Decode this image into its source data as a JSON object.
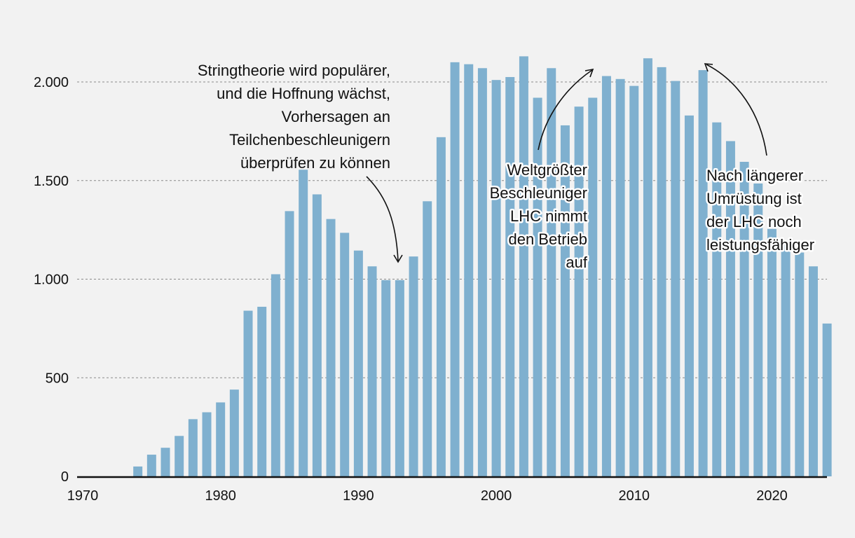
{
  "chart_data": {
    "type": "bar",
    "title": "",
    "xlabel": "",
    "ylabel": "",
    "xlim": [
      1970,
      2024
    ],
    "ylim": [
      0,
      2200
    ],
    "y_ticks": [
      0,
      500,
      1000,
      1500,
      2000
    ],
    "y_tick_labels": [
      "0",
      "500",
      "1.000",
      "1.500",
      "2.000"
    ],
    "x_ticks": [
      1970,
      1980,
      1990,
      2000,
      2010,
      2020
    ],
    "x_tick_labels": [
      "1970",
      "1980",
      "1990",
      "2000",
      "2010",
      "2020"
    ],
    "grid": true,
    "color": "#7fb0cf",
    "categories": [
      1974,
      1975,
      1976,
      1977,
      1978,
      1979,
      1980,
      1981,
      1982,
      1983,
      1984,
      1985,
      1986,
      1987,
      1988,
      1989,
      1990,
      1991,
      1992,
      1993,
      1994,
      1995,
      1996,
      1997,
      1998,
      1999,
      2000,
      2001,
      2002,
      2003,
      2004,
      2005,
      2006,
      2007,
      2008,
      2009,
      2010,
      2011,
      2012,
      2013,
      2014,
      2015,
      2016,
      2017,
      2018,
      2019,
      2020,
      2021,
      2022,
      2023,
      2024
    ],
    "values": [
      50,
      110,
      145,
      205,
      290,
      325,
      375,
      440,
      840,
      860,
      1025,
      1345,
      1555,
      1430,
      1305,
      1235,
      1145,
      1065,
      995,
      995,
      1115,
      1395,
      1720,
      2100,
      2090,
      2070,
      2010,
      2025,
      2130,
      1920,
      2070,
      1780,
      1875,
      1920,
      2030,
      2015,
      1980,
      2120,
      2075,
      2005,
      1830,
      2060,
      1795,
      1700,
      1595,
      1485,
      1255,
      1185,
      1135,
      1065,
      775
    ],
    "annotations": [
      {
        "text_lines": [
          "Stringtheorie wird populärer,",
          "und die Hoffnung wächst,",
          "Vorhersagen an",
          "Teilchenbeschleunigern",
          "überprüfen zu können"
        ],
        "target_year": 1993,
        "align": "right"
      },
      {
        "text_lines": [
          "Weltgrößter",
          "Beschleuniger",
          "LHC nimmt",
          "den Betrieb",
          "auf"
        ],
        "target_year": 2008,
        "align": "right"
      },
      {
        "text_lines": [
          "Nach längerer",
          "Umrüstung ist",
          "der LHC noch",
          "leistungsfähiger"
        ],
        "target_year": 2015,
        "align": "left"
      }
    ]
  }
}
